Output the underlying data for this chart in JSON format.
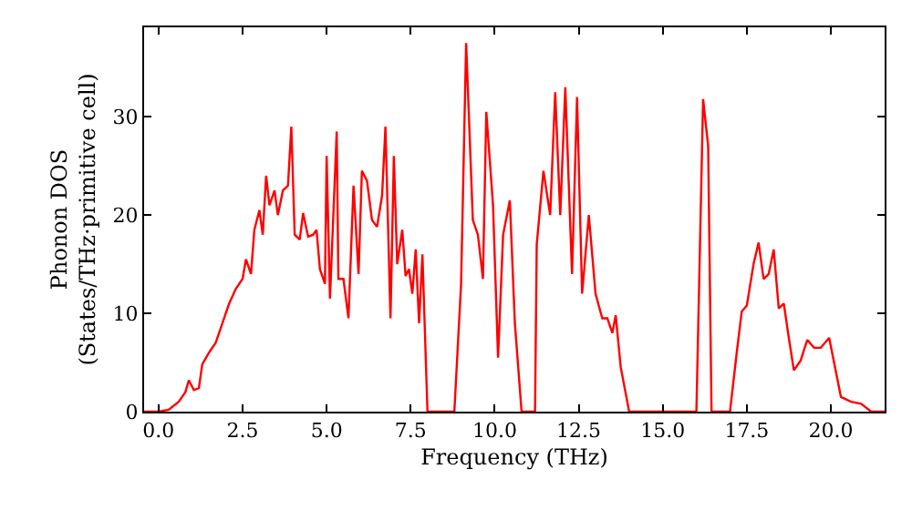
{
  "chart_data": {
    "type": "line",
    "xlabel": "Frequency (THz)",
    "ylabel": "Phonon DOS\n(States/THz·primitive cell)",
    "x": [
      -0.43,
      0,
      0.3,
      0.6,
      0.8,
      0.9,
      1.05,
      1.2,
      1.3,
      1.5,
      1.7,
      1.9,
      2.1,
      2.3,
      2.5,
      2.6,
      2.75,
      2.85,
      3.0,
      3.1,
      3.2,
      3.3,
      3.45,
      3.55,
      3.7,
      3.85,
      3.95,
      4.05,
      4.2,
      4.3,
      4.45,
      4.6,
      4.7,
      4.8,
      4.95,
      5.0,
      5.1,
      5.3,
      5.35,
      5.5,
      5.65,
      5.8,
      5.95,
      6.05,
      6.2,
      6.35,
      6.5,
      6.65,
      6.75,
      6.9,
      7.0,
      7.1,
      7.25,
      7.35,
      7.45,
      7.55,
      7.65,
      7.75,
      7.85,
      8.0,
      8.8,
      9.0,
      9.15,
      9.35,
      9.5,
      9.65,
      9.75,
      9.95,
      10.1,
      10.25,
      10.45,
      10.6,
      10.8,
      11.2,
      11.25,
      11.45,
      11.65,
      11.8,
      11.95,
      12.1,
      12.3,
      12.45,
      12.6,
      12.8,
      13.0,
      13.2,
      13.35,
      13.5,
      13.6,
      13.75,
      14.0,
      16.0,
      16.2,
      16.35,
      16.45,
      17.0,
      17.2,
      17.35,
      17.5,
      17.7,
      17.85,
      18.0,
      18.15,
      18.3,
      18.45,
      18.6,
      18.75,
      18.9,
      19.1,
      19.3,
      19.5,
      19.7,
      19.95,
      20.3,
      20.6,
      20.9,
      21.2,
      21.6
    ],
    "series": [
      {
        "color": "#ff0000",
        "values": [
          0,
          0,
          0.2,
          1,
          2,
          3.2,
          2.2,
          2.4,
          4.8,
          6,
          7,
          9,
          11,
          12.5,
          13.5,
          15.5,
          14,
          18.5,
          20.5,
          18,
          24,
          21,
          22.5,
          20,
          22.5,
          23,
          29,
          18,
          17.5,
          20.2,
          17.8,
          18,
          18.5,
          14.5,
          13,
          26,
          11.5,
          28.5,
          13.5,
          13.5,
          9.5,
          23,
          14,
          24.5,
          23.5,
          19.5,
          18.8,
          22,
          29,
          9.5,
          26,
          15,
          18.5,
          13.8,
          14.5,
          12,
          16.5,
          9,
          16,
          0,
          0,
          13,
          37.5,
          19.5,
          18,
          13.5,
          30.5,
          21,
          5.5,
          18,
          21.5,
          9,
          0,
          0,
          17,
          24.5,
          20,
          32.5,
          20,
          33,
          14,
          32,
          12,
          20,
          12,
          9.5,
          9.5,
          8,
          9.8,
          4.5,
          0,
          0,
          31.8,
          27,
          0,
          0,
          6,
          10.2,
          10.8,
          15,
          17.2,
          13.5,
          14,
          16.5,
          10.5,
          11,
          7.5,
          4.2,
          5.2,
          7.3,
          6.5,
          6.5,
          7.5,
          1.5,
          1,
          0.8,
          0,
          0
        ]
      }
    ],
    "xlim": [
      -0.43,
      21.6
    ],
    "ylim": [
      0,
      39.1
    ],
    "xticks": [
      {
        "value": 0,
        "label": "0.0"
      },
      {
        "value": 2.5,
        "label": "2.5"
      },
      {
        "value": 5,
        "label": "5.0"
      },
      {
        "value": 7.5,
        "label": "7.5"
      },
      {
        "value": 10,
        "label": "10.0"
      },
      {
        "value": 12.5,
        "label": "12.5"
      },
      {
        "value": 15,
        "label": "15.0"
      },
      {
        "value": 17.5,
        "label": "17.5"
      },
      {
        "value": 20,
        "label": "20.0"
      }
    ],
    "yticks": [
      0,
      10,
      20,
      30
    ],
    "marker": "none",
    "line_style": "solid"
  }
}
